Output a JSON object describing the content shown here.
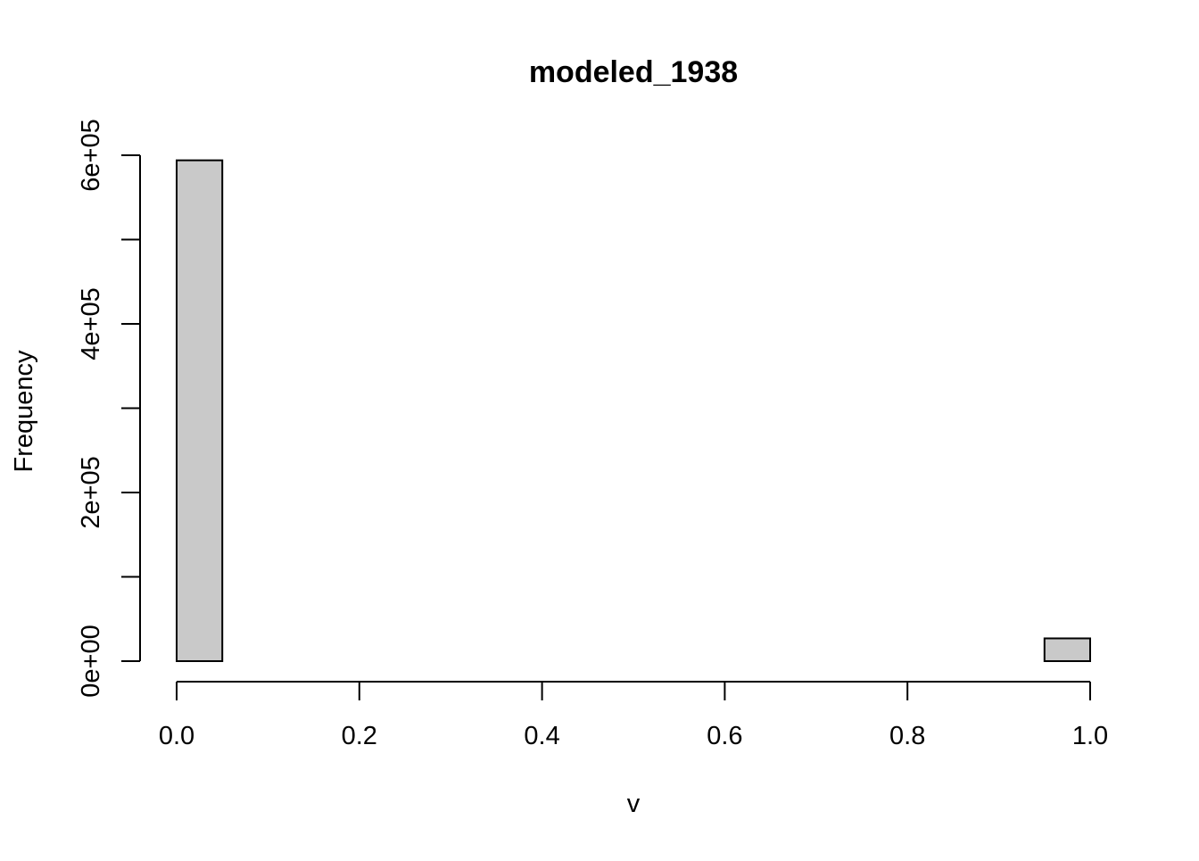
{
  "chart_data": {
    "type": "bar",
    "title": "modeled_1938",
    "xlabel": "v",
    "ylabel": "Frequency",
    "xlim": [
      0,
      1
    ],
    "ylim": [
      0,
      600000
    ],
    "bin_width": 0.05,
    "bin_starts": [
      0.0,
      0.05,
      0.1,
      0.15,
      0.2,
      0.25,
      0.3,
      0.35,
      0.4,
      0.45,
      0.5,
      0.55,
      0.6,
      0.65,
      0.7,
      0.75,
      0.8,
      0.85,
      0.9,
      0.95
    ],
    "values": [
      594000,
      0,
      0,
      0,
      0,
      0,
      0,
      0,
      0,
      0,
      0,
      0,
      0,
      0,
      0,
      0,
      0,
      0,
      0,
      27000
    ],
    "xticks": [
      0.0,
      0.2,
      0.4,
      0.6,
      0.8,
      1.0
    ],
    "xtick_labels": [
      "0.0",
      "0.2",
      "0.4",
      "0.6",
      "0.8",
      "1.0"
    ],
    "yticks": [
      0,
      100000,
      200000,
      300000,
      400000,
      500000,
      600000
    ],
    "ytick_labels": [
      "0e+00",
      "",
      "2e+05",
      "",
      "4e+05",
      "",
      "6e+05"
    ],
    "bar_fill": "#c9c9c9",
    "bar_stroke": "#000000",
    "grid": false,
    "legend": "none"
  }
}
